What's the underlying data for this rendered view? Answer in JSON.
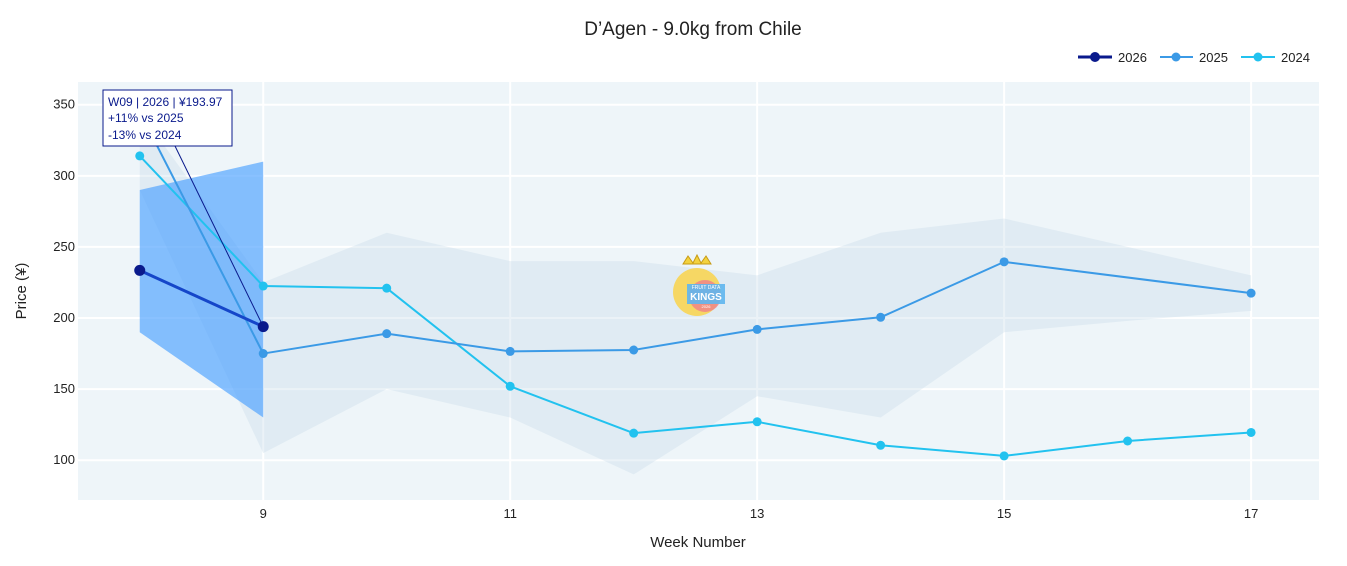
{
  "chart_data": {
    "type": "line",
    "title": "D’Agen - 9.0kg from Chile",
    "xlabel": "Week Number",
    "ylabel": "Price (¥)",
    "xlim": [
      7.5,
      17.55
    ],
    "ylim": [
      72,
      366
    ],
    "x_ticks": [
      9,
      11,
      13,
      15,
      17
    ],
    "y_ticks": [
      100,
      150,
      200,
      250,
      300,
      350
    ],
    "grid": true,
    "legend_position": "top-right",
    "series": [
      {
        "name": "2026",
        "color": "#0a1a8c",
        "line_color": "#1546c9",
        "x": [
          8,
          9
        ],
        "y": [
          233.5,
          193.97
        ],
        "band": {
          "x": [
            8,
            9
          ],
          "lower": [
            190,
            130
          ],
          "upper": [
            290,
            310
          ],
          "color": "#4aa0ff",
          "opacity": 0.65
        }
      },
      {
        "name": "2025",
        "color": "#3b9ae6",
        "x": [
          8,
          9,
          10,
          11,
          12,
          13,
          14,
          15,
          17
        ],
        "y": [
          345,
          175,
          189,
          176.5,
          177.5,
          192,
          200.5,
          239.5,
          217.5
        ]
      },
      {
        "name": "2024",
        "color": "#22c2ef",
        "x": [
          8,
          9,
          10,
          11,
          12,
          13,
          14,
          15,
          16,
          17
        ],
        "y": [
          314,
          222.5,
          221,
          152,
          119,
          127,
          110.5,
          103,
          113.5,
          119.5
        ]
      }
    ],
    "background_band": {
      "x": [
        8,
        9,
        10,
        11,
        12,
        13,
        14,
        15,
        16,
        17
      ],
      "lower": [
        290,
        105,
        150,
        130,
        90,
        145,
        130,
        190,
        198,
        205
      ],
      "upper": [
        345,
        225,
        260,
        240,
        240,
        230,
        260,
        270,
        250,
        230
      ]
    },
    "annotation": {
      "lines": [
        "W09 | 2026 | ¥193.97",
        "+11% vs 2025",
        "-13% vs 2024"
      ]
    }
  },
  "watermark": {
    "lines": [
      "FRUIT DATA",
      "KINGS",
      "2026"
    ]
  }
}
